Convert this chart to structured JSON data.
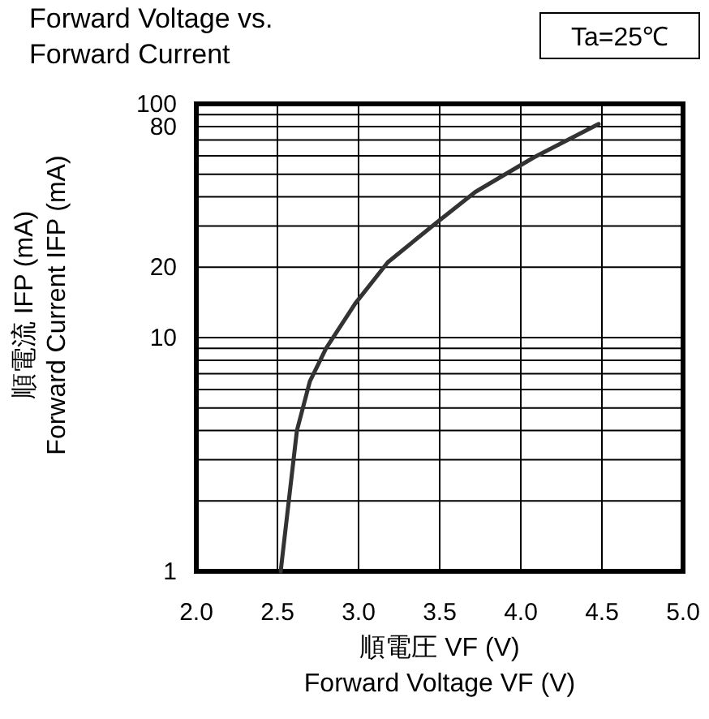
{
  "chart_data": {
    "type": "line",
    "title": "Forward Voltage vs.\nForward Current",
    "xlabel": "順電圧  VF (V)\nForward Voltage  VF (V)",
    "ylabel": "順電流  IFP (mA)\nForward Current  IFP (mA)",
    "annotations": [
      "Ta=25℃"
    ],
    "log": "y",
    "grid": true,
    "marker": "none",
    "line_style": "solid",
    "xlim": [
      2.0,
      5.0
    ],
    "xticks": [
      {
        "value": 2.0,
        "label": "2.0"
      },
      {
        "value": 2.5,
        "label": "2.5"
      },
      {
        "value": 3.0,
        "label": "3.0"
      },
      {
        "value": 3.5,
        "label": "3.5"
      },
      {
        "value": 4.0,
        "label": "4.0"
      },
      {
        "value": 4.5,
        "label": "4.5"
      },
      {
        "value": 5.0,
        "label": "5.0"
      }
    ],
    "ylim": [
      1,
      100
    ],
    "yticks": [
      1,
      {
        "value": 2,
        "label": null
      },
      {
        "value": 3,
        "label": null
      },
      {
        "value": 4,
        "label": null
      },
      {
        "value": 5,
        "label": null
      },
      {
        "value": 6,
        "label": null
      },
      {
        "value": 7,
        "label": null
      },
      {
        "value": 8,
        "label": null
      },
      {
        "value": 9,
        "label": null
      },
      10,
      20,
      {
        "value": 30,
        "label": null
      },
      {
        "value": 40,
        "label": null
      },
      {
        "value": 50,
        "label": null
      },
      {
        "value": 60,
        "label": null
      },
      {
        "value": 70,
        "label": null
      },
      80,
      {
        "value": 90,
        "label": null
      },
      100
    ],
    "series": [
      {
        "color": "#333333",
        "x": [
          2.52,
          2.57,
          2.62,
          2.7,
          2.8,
          2.98,
          3.18,
          3.48,
          3.72,
          4.08,
          4.48
        ],
        "values": [
          1,
          2,
          4,
          6.5,
          9,
          14,
          21,
          31,
          42,
          59,
          82
        ]
      }
    ]
  }
}
